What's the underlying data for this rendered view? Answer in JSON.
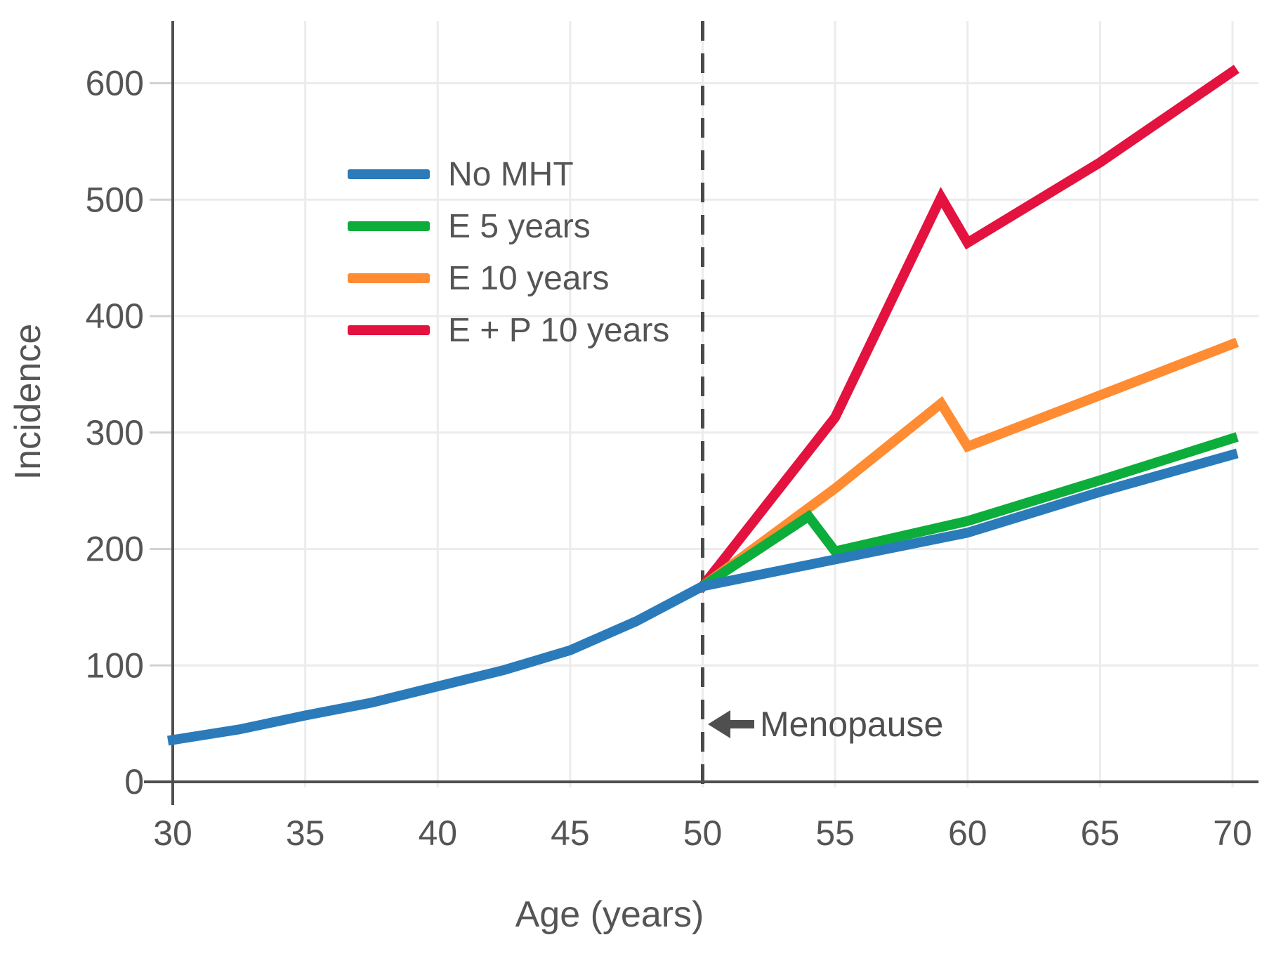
{
  "chart_data": {
    "type": "line",
    "title": "",
    "xlabel": "Age (years)",
    "ylabel": "Incidence",
    "x_range": [
      30,
      70
    ],
    "y_range": [
      0,
      600
    ],
    "x_ticks": [
      30,
      35,
      40,
      45,
      50,
      55,
      60,
      65,
      70
    ],
    "y_ticks": [
      0,
      100,
      200,
      300,
      400,
      500,
      600
    ],
    "grid": true,
    "legend_position": "upper-left-inside",
    "series": [
      {
        "name": "No MHT",
        "color": "#2B7BBA",
        "points": [
          [
            30,
            36
          ],
          [
            32.5,
            45
          ],
          [
            35,
            57
          ],
          [
            37.5,
            68
          ],
          [
            40,
            82
          ],
          [
            42.5,
            96
          ],
          [
            45,
            113
          ],
          [
            47.5,
            138
          ],
          [
            50,
            168
          ],
          [
            55,
            191
          ],
          [
            60,
            214
          ],
          [
            65,
            249
          ],
          [
            70,
            281
          ]
        ]
      },
      {
        "name": "E 5 years",
        "color": "#0CAD3B",
        "points": [
          [
            50,
            168
          ],
          [
            54,
            228
          ],
          [
            55,
            198
          ],
          [
            60,
            224
          ],
          [
            65,
            259
          ],
          [
            70,
            295
          ]
        ]
      },
      {
        "name": "E 10 years",
        "color": "#FF8C33",
        "points": [
          [
            50,
            168
          ],
          [
            55,
            252
          ],
          [
            59,
            325
          ],
          [
            60,
            288
          ],
          [
            65,
            332
          ],
          [
            70,
            376
          ]
        ]
      },
      {
        "name": "E + P 10 years",
        "color": "#E3123F",
        "points": [
          [
            50,
            168
          ],
          [
            55,
            313
          ],
          [
            59,
            502
          ],
          [
            60,
            463
          ],
          [
            65,
            532
          ],
          [
            70,
            610
          ]
        ]
      }
    ],
    "vline": {
      "x": 50,
      "style": "dashed",
      "color": "#4a4a4a"
    },
    "annotations": [
      {
        "text": "Menopause",
        "x": 50,
        "y": 49,
        "type": "arrow-left"
      }
    ],
    "colors": {
      "grid": "#ececec",
      "axis": "#4f4f4f",
      "tick_mark": "#d2d2d2",
      "tick_text": "#555555"
    }
  }
}
